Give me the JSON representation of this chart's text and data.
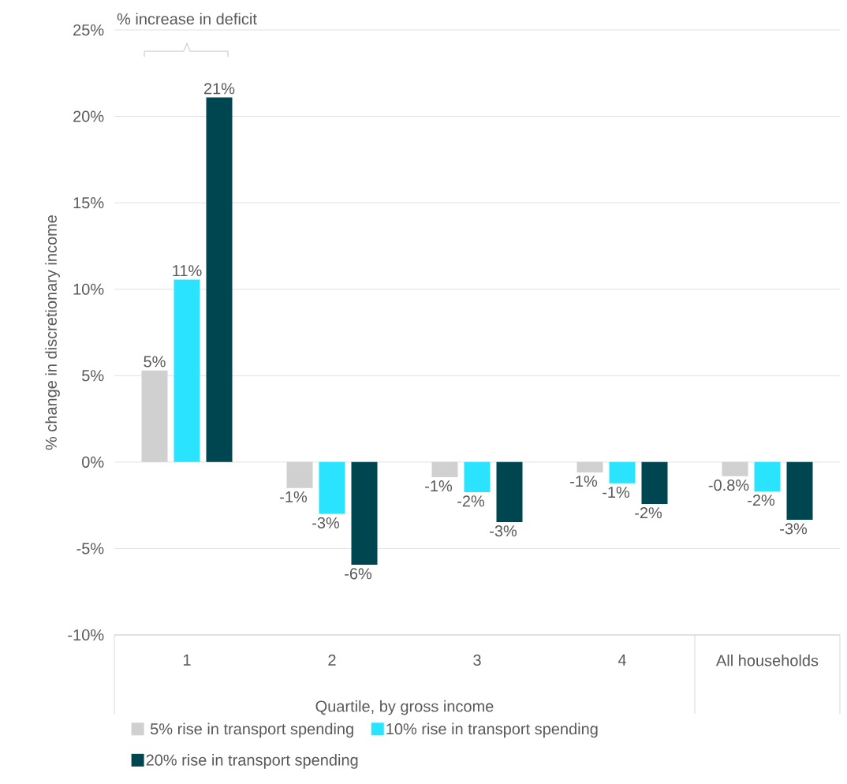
{
  "chart_data": {
    "type": "bar",
    "ylabel": "% change in discretionary income",
    "categories": [
      "1",
      "2",
      "3",
      "4",
      "All households"
    ],
    "series": [
      {
        "name": "5% rise in transport spending",
        "color": "#d0d0d0",
        "values": [
          5.3,
          -1.5,
          -0.87,
          -0.6,
          -0.82
        ],
        "value_labels": [
          "5%",
          "-1%",
          "-1%",
          "-1%",
          "-0.8%"
        ]
      },
      {
        "name": "10% rise in transport spending",
        "color": "#29e3ff",
        "values": [
          10.56,
          -3.0,
          -1.74,
          -1.23,
          -1.69
        ],
        "value_labels": [
          "11%",
          "-3%",
          "-2%",
          "-1%",
          "-2%"
        ]
      },
      {
        "name": "20% rise in transport spending",
        "color": "#004650",
        "values": [
          21.1,
          -5.94,
          -3.47,
          -2.42,
          -3.34
        ],
        "value_labels": [
          "21%",
          "-6%",
          "-3%",
          "-2%",
          "-3%"
        ]
      }
    ],
    "ylim": [
      -10,
      25
    ],
    "yticks": [
      {
        "value": -10,
        "label": "-10%"
      },
      {
        "value": -5,
        "label": "-5%"
      },
      {
        "value": 0,
        "label": "0%"
      },
      {
        "value": 5,
        "label": "5%"
      },
      {
        "value": 10,
        "label": "10%"
      },
      {
        "value": 15,
        "label": "15%"
      },
      {
        "value": 20,
        "label": "20%"
      },
      {
        "value": 25,
        "label": "25%"
      }
    ],
    "grid": "y",
    "legend": "bottom",
    "annotations": [
      "% increase in deficit",
      "Quartile, by gross income"
    ]
  }
}
